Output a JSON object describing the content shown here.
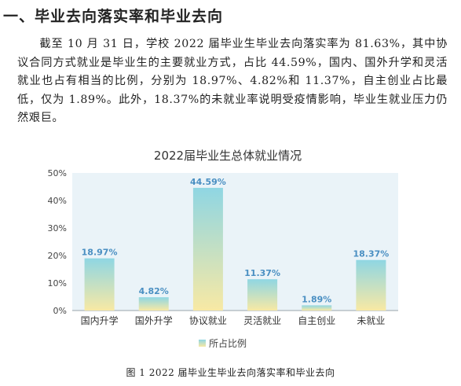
{
  "heading": "一、毕业去向落实率和毕业去向",
  "paragraph": "截至 10 月 31 日，学校 2022 届毕业生毕业去向落实率为 81.63%，其中协议合同方式就业是毕业生的主要就业方式，占比 44.59%，国内、国外升学和灵活就业也占有相当的比例，分别为 18.97%、4.82%和 11.37%，自主创业占比最低，仅为 1.89%。此外，18.37%的未就业率说明受疫情影响，毕业生就业压力仍然艰巨。",
  "caption": "图 1  2022 届毕业生毕业去向落实率和毕业去向",
  "chart_data": {
    "type": "bar",
    "title": "2022届毕业生总体就业情况",
    "categories": [
      "国内升学",
      "国外升学",
      "协议就业",
      "灵活就业",
      "自主创业",
      "未就业"
    ],
    "series": [
      {
        "name": "所占比例",
        "values": [
          18.97,
          4.82,
          44.59,
          11.37,
          1.89,
          18.37
        ],
        "labels": [
          "18.97%",
          "4.82%",
          "44.59%",
          "11.37%",
          "1.89%",
          "18.37%"
        ]
      }
    ],
    "yticks": [
      "0%",
      "10%",
      "20%",
      "30%",
      "40%",
      "50%"
    ],
    "ylim": [
      0,
      50
    ],
    "grid": false,
    "legend": "bottom",
    "colors": {
      "bar_top": "#8fd6e3",
      "bar_bottom": "#f8e9a4",
      "label": "#4a8fc2",
      "plot_bg": "#eaf3f8"
    }
  }
}
